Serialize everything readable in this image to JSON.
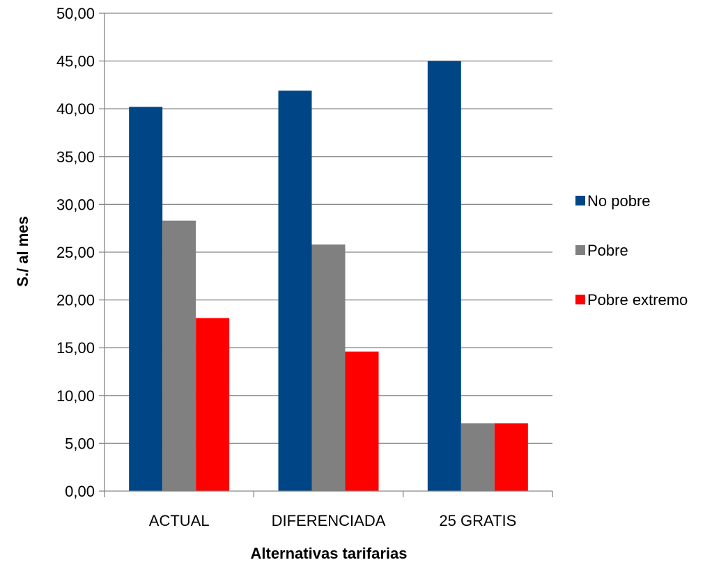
{
  "chart_data": {
    "type": "bar",
    "title": "",
    "xlabel": "Alternativas tarifarias",
    "ylabel": "S./ al mes",
    "categories": [
      "ACTUAL",
      "DIFERENCIADA",
      "25 GRATIS"
    ],
    "series": [
      {
        "name": "No pobre",
        "color": "#004586",
        "values": [
          40.2,
          41.9,
          45.0
        ]
      },
      {
        "name": "Pobre",
        "color": "#808080",
        "values": [
          28.3,
          25.8,
          7.1
        ]
      },
      {
        "name": "Pobre extremo",
        "color": "#ff0000",
        "values": [
          18.1,
          14.6,
          7.1
        ]
      }
    ],
    "ylim": [
      0,
      50
    ],
    "ytick_step": 5,
    "ytick_labels": [
      "0,00",
      "5,00",
      "10,00",
      "15,00",
      "20,00",
      "25,00",
      "30,00",
      "35,00",
      "40,00",
      "45,00",
      "50,00"
    ],
    "grid": true,
    "legend_position": "right"
  }
}
